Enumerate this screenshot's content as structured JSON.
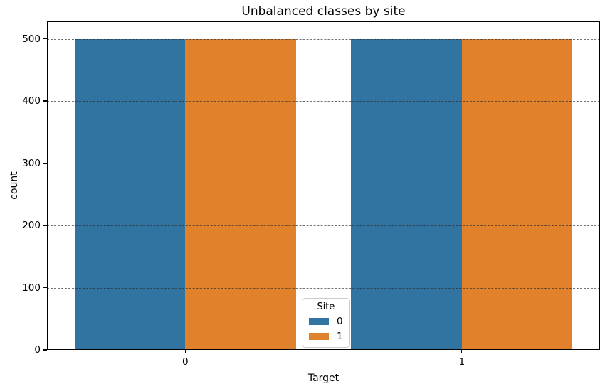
{
  "chart_data": {
    "type": "bar",
    "title": "Unbalanced classes by site",
    "xlabel": "Target",
    "ylabel": "count",
    "categories": [
      "0",
      "1"
    ],
    "series": [
      {
        "name": "0",
        "color": "#3274a1",
        "values": [
          500,
          500
        ]
      },
      {
        "name": "1",
        "color": "#e1812c",
        "values": [
          500,
          500
        ]
      }
    ],
    "legend": {
      "title": "Site",
      "position": "lower center"
    },
    "ylim": [
      0,
      528
    ],
    "yticks": [
      0,
      100,
      200,
      300,
      400,
      500
    ],
    "grid": {
      "axis": "y",
      "style": "dashed",
      "on": true
    },
    "bar_group_width": 0.8
  }
}
